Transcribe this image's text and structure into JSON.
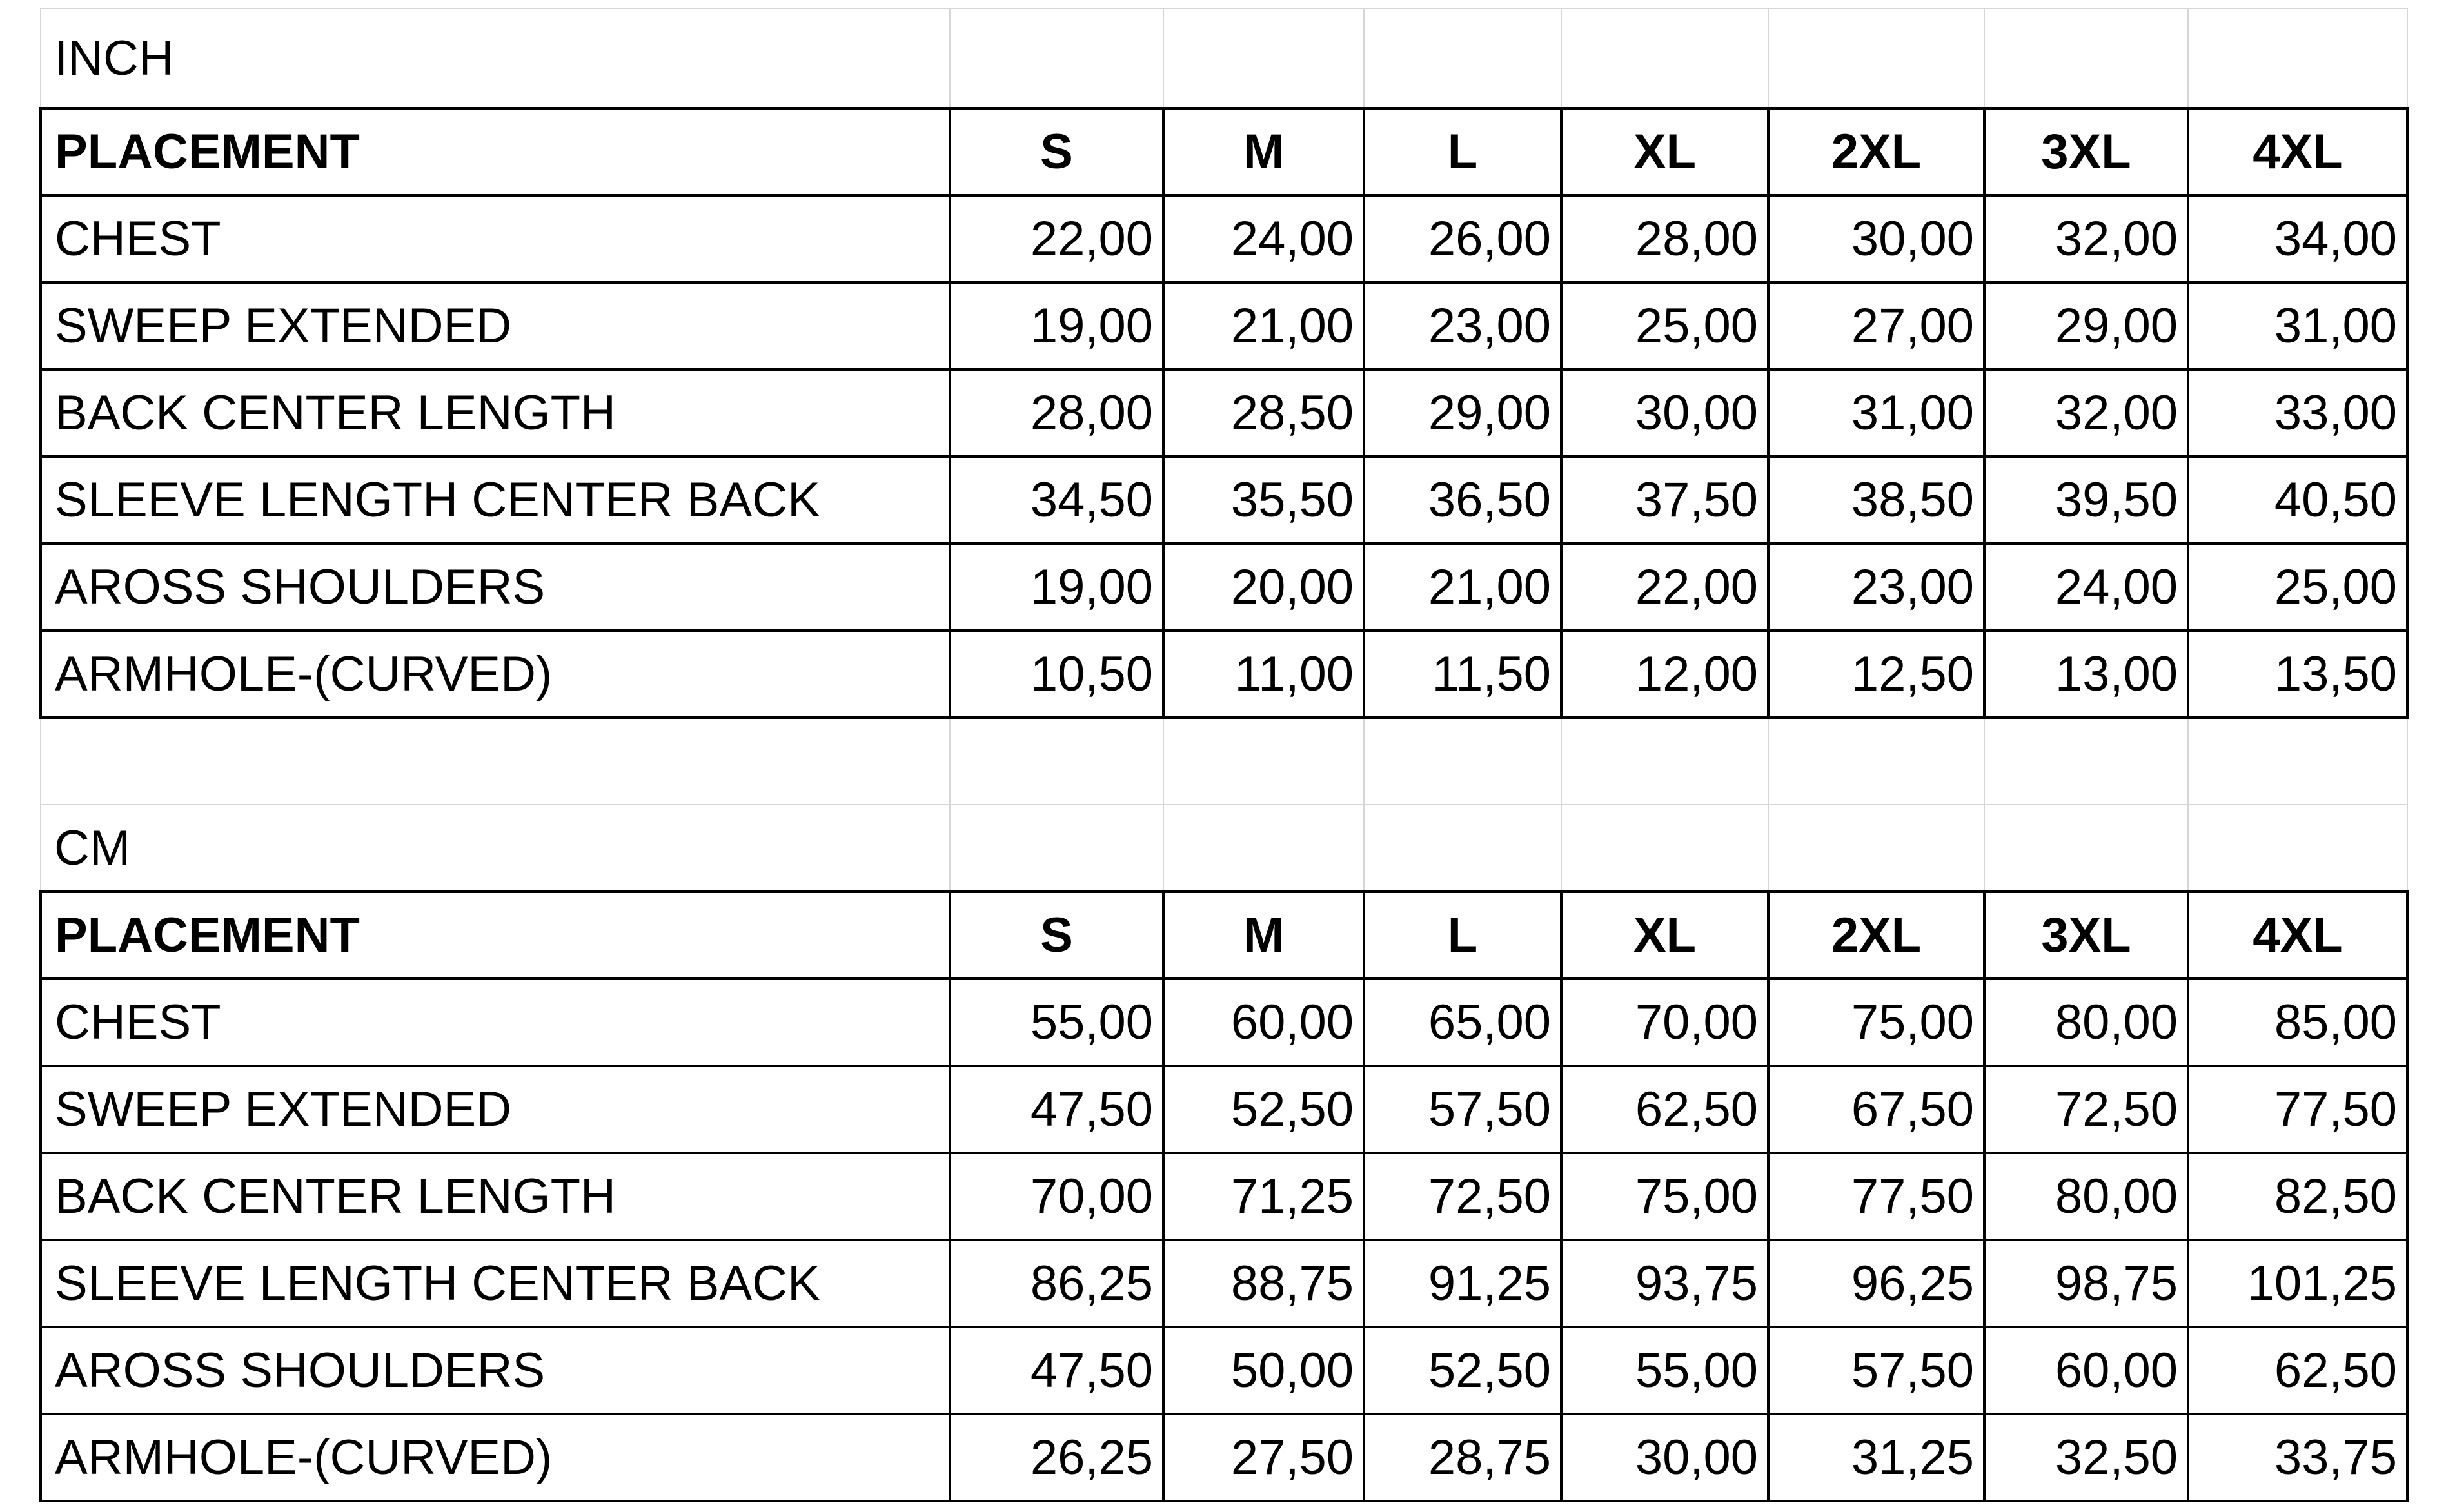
{
  "sizes": [
    "S",
    "M",
    "L",
    "XL",
    "2XL",
    "3XL",
    "4XL"
  ],
  "tables": [
    {
      "unit": "INCH",
      "header": "PLACEMENT",
      "rows": [
        {
          "label": "CHEST",
          "values": [
            "22,00",
            "24,00",
            "26,00",
            "28,00",
            "30,00",
            "32,00",
            "34,00"
          ]
        },
        {
          "label": "SWEEP EXTENDED",
          "values": [
            "19,00",
            "21,00",
            "23,00",
            "25,00",
            "27,00",
            "29,00",
            "31,00"
          ]
        },
        {
          "label": "BACK CENTER LENGTH",
          "values": [
            "28,00",
            "28,50",
            "29,00",
            "30,00",
            "31,00",
            "32,00",
            "33,00"
          ]
        },
        {
          "label": "SLEEVE LENGTH CENTER BACK",
          "values": [
            "34,50",
            "35,50",
            "36,50",
            "37,50",
            "38,50",
            "39,50",
            "40,50"
          ]
        },
        {
          "label": "AROSS SHOULDERS",
          "values": [
            "19,00",
            "20,00",
            "21,00",
            "22,00",
            "23,00",
            "24,00",
            "25,00"
          ]
        },
        {
          "label": "ARMHOLE-(CURVED)",
          "values": [
            "10,50",
            "11,00",
            "11,50",
            "12,00",
            "12,50",
            "13,00",
            "13,50"
          ]
        }
      ]
    },
    {
      "unit": "CM",
      "header": "PLACEMENT",
      "rows": [
        {
          "label": "CHEST",
          "values": [
            "55,00",
            "60,00",
            "65,00",
            "70,00",
            "75,00",
            "80,00",
            "85,00"
          ]
        },
        {
          "label": "SWEEP EXTENDED",
          "values": [
            "47,50",
            "52,50",
            "57,50",
            "62,50",
            "67,50",
            "72,50",
            "77,50"
          ]
        },
        {
          "label": "BACK CENTER LENGTH",
          "values": [
            "70,00",
            "71,25",
            "72,50",
            "75,00",
            "77,50",
            "80,00",
            "82,50"
          ]
        },
        {
          "label": "SLEEVE LENGTH CENTER BACK",
          "values": [
            "86,25",
            "88,75",
            "91,25",
            "93,75",
            "96,25",
            "98,75",
            "101,25"
          ]
        },
        {
          "label": "AROSS SHOULDERS",
          "values": [
            "47,50",
            "50,00",
            "52,50",
            "55,00",
            "57,50",
            "60,00",
            "62,50"
          ]
        },
        {
          "label": "ARMHOLE-(CURVED)",
          "values": [
            "26,25",
            "27,50",
            "28,75",
            "30,00",
            "31,25",
            "32,50",
            "33,75"
          ]
        }
      ]
    }
  ]
}
